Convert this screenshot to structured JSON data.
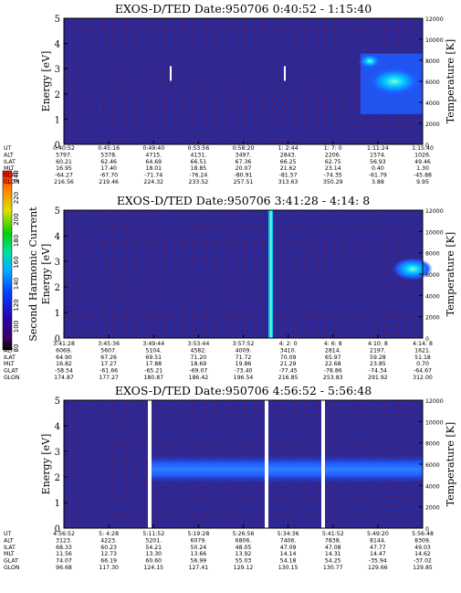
{
  "colorbar": {
    "label": "Second Harmonic Current",
    "ticks": [
      "240",
      "220",
      "200",
      "180",
      "160",
      "140",
      "120",
      "100",
      "80"
    ]
  },
  "colors": {
    "background": "#2a2a9c",
    "noise": "#6a0f2e",
    "enhanced": "#1e5cff",
    "bright": "#00c8ff",
    "peak": "#7cffd6",
    "gap": "#ffffff"
  },
  "eph_labels": [
    "UT",
    "ALT",
    "ILAT",
    "MLT",
    "GLAT",
    "GLON"
  ],
  "chart_data": [
    {
      "type": "heatmap",
      "title": "EXOS-D/TED   Date:950706  0:40:52 - 1:15:40",
      "ylabel": "Energy [eV]",
      "y2label": "Temperature [K]",
      "ylim": [
        0,
        5
      ],
      "y2lim": [
        0,
        12000
      ],
      "yticks": [
        "0",
        "1",
        "2",
        "3",
        "4",
        "5"
      ],
      "y2ticks": [
        "0",
        "2000",
        "4000",
        "6000",
        "8000",
        "10000",
        "12000"
      ],
      "ephemeris": [
        [
          "0:40:52",
          "5797.",
          "60.21",
          "16.95",
          "-64.27",
          "216.56"
        ],
        [
          "0:45:16",
          "5378.",
          "62.46",
          "17.40",
          "-67.70",
          "219.46"
        ],
        [
          "0:49:40",
          "4715.",
          "64.69",
          "18.01",
          "-71.74",
          "224.32"
        ],
        [
          "0:53:56",
          "4131.",
          "66.51",
          "18.85",
          "-76.24",
          "233.52"
        ],
        [
          "0:58:20",
          "3497.",
          "67.36",
          "20.07",
          "-80.91",
          "257.51"
        ],
        [
          "1: 2:44",
          "2843.",
          "66.25",
          "21.62",
          "-81.57",
          "313.63"
        ],
        [
          "1: 7: 0",
          "2206.",
          "62.75",
          "23.14",
          "-74.35",
          "350.29"
        ],
        [
          "1:11:24",
          "1574.",
          "56.93",
          "0.40",
          "-61.79",
          "3.88"
        ],
        [
          "1:15:40",
          "1026.",
          "49.46",
          "1.30",
          "-45.88",
          "9.95"
        ]
      ]
    },
    {
      "type": "heatmap",
      "title": "EXOS-D/TED   Date:950706  3:41:28 - 4:14: 8",
      "ylabel": "Energy [eV]",
      "y2label": "Temperature [K]",
      "ylim": [
        0,
        5
      ],
      "y2lim": [
        0,
        12000
      ],
      "yticks": [
        "0",
        "1",
        "2",
        "3",
        "4",
        "5"
      ],
      "y2ticks": [
        "0",
        "2000",
        "4000",
        "6000",
        "8000",
        "10000",
        "12000"
      ],
      "ephemeris": [
        [
          "3:41:28",
          "6069.",
          "64.90",
          "16.82",
          "-58.54",
          "174.87"
        ],
        [
          "3:45:36",
          "5607.",
          "67.26",
          "17.27",
          "-61.66",
          "177.27"
        ],
        [
          "3:49:44",
          "5104.",
          "69.51",
          "17.88",
          "-65.21",
          "180.87"
        ],
        [
          "3:53:44",
          "4582.",
          "71.20",
          "18.69",
          "-69.07",
          "186.42"
        ],
        [
          "3:57:52",
          "4009.",
          "71.72",
          "19.86",
          "-73.40",
          "196.54"
        ],
        [
          "4: 2: 0",
          "3410.",
          "70.09",
          "21.29",
          "-77.45",
          "216.85"
        ],
        [
          "4: 6: 8",
          "2814.",
          "65.97",
          "22.68",
          "-78.86",
          "253.83"
        ],
        [
          "4:10: 8",
          "2197.",
          "59.28",
          "23.85",
          "-74.34",
          "291.92"
        ],
        [
          "4:14: 8",
          "1621.",
          "51.18",
          "0.70",
          "-64.67",
          "312.00"
        ]
      ]
    },
    {
      "type": "heatmap",
      "title": "EXOS-D/TED   Date:950706  4:56:52 - 5:56:48",
      "ylabel": "Energy [eV]",
      "y2label": "Temperature [K]",
      "ylim": [
        0,
        5
      ],
      "y2lim": [
        0,
        12000
      ],
      "yticks": [
        "0",
        "1",
        "2",
        "3",
        "4",
        "5"
      ],
      "y2ticks": [
        "0",
        "2000",
        "4000",
        "6000",
        "8000",
        "10000",
        "12000"
      ],
      "ephemeris": [
        [
          "4:56:52",
          "3123.",
          "68.33",
          "11.56",
          "74.07",
          "96.68"
        ],
        [
          "5: 4:28",
          "4223.",
          "60.23",
          "12.73",
          "66.19",
          "117.30"
        ],
        [
          "5:11:52",
          "5201.",
          "54.21",
          "13.30",
          "60.60",
          "124.15"
        ],
        [
          "5:19:28",
          "6079.",
          "50.24",
          "13.66",
          "56.99",
          "127.41"
        ],
        [
          "5:26:56",
          "6806.",
          "48.05",
          "13.92",
          "55.03",
          "129.12"
        ],
        [
          "5:34:36",
          "7406.",
          "47.09",
          "14.14",
          "54.18",
          "130.15"
        ],
        [
          "5:41:52",
          "7838.",
          "47.08",
          "14.31",
          "54.25",
          "130.77"
        ],
        [
          "5:49:20",
          "8144.",
          "47.77",
          "14.47",
          "-35.94",
          "129.66"
        ],
        [
          "5:56:48",
          "8309.",
          "49.03",
          "14.62",
          "-37.02",
          "129.85"
        ]
      ]
    }
  ]
}
